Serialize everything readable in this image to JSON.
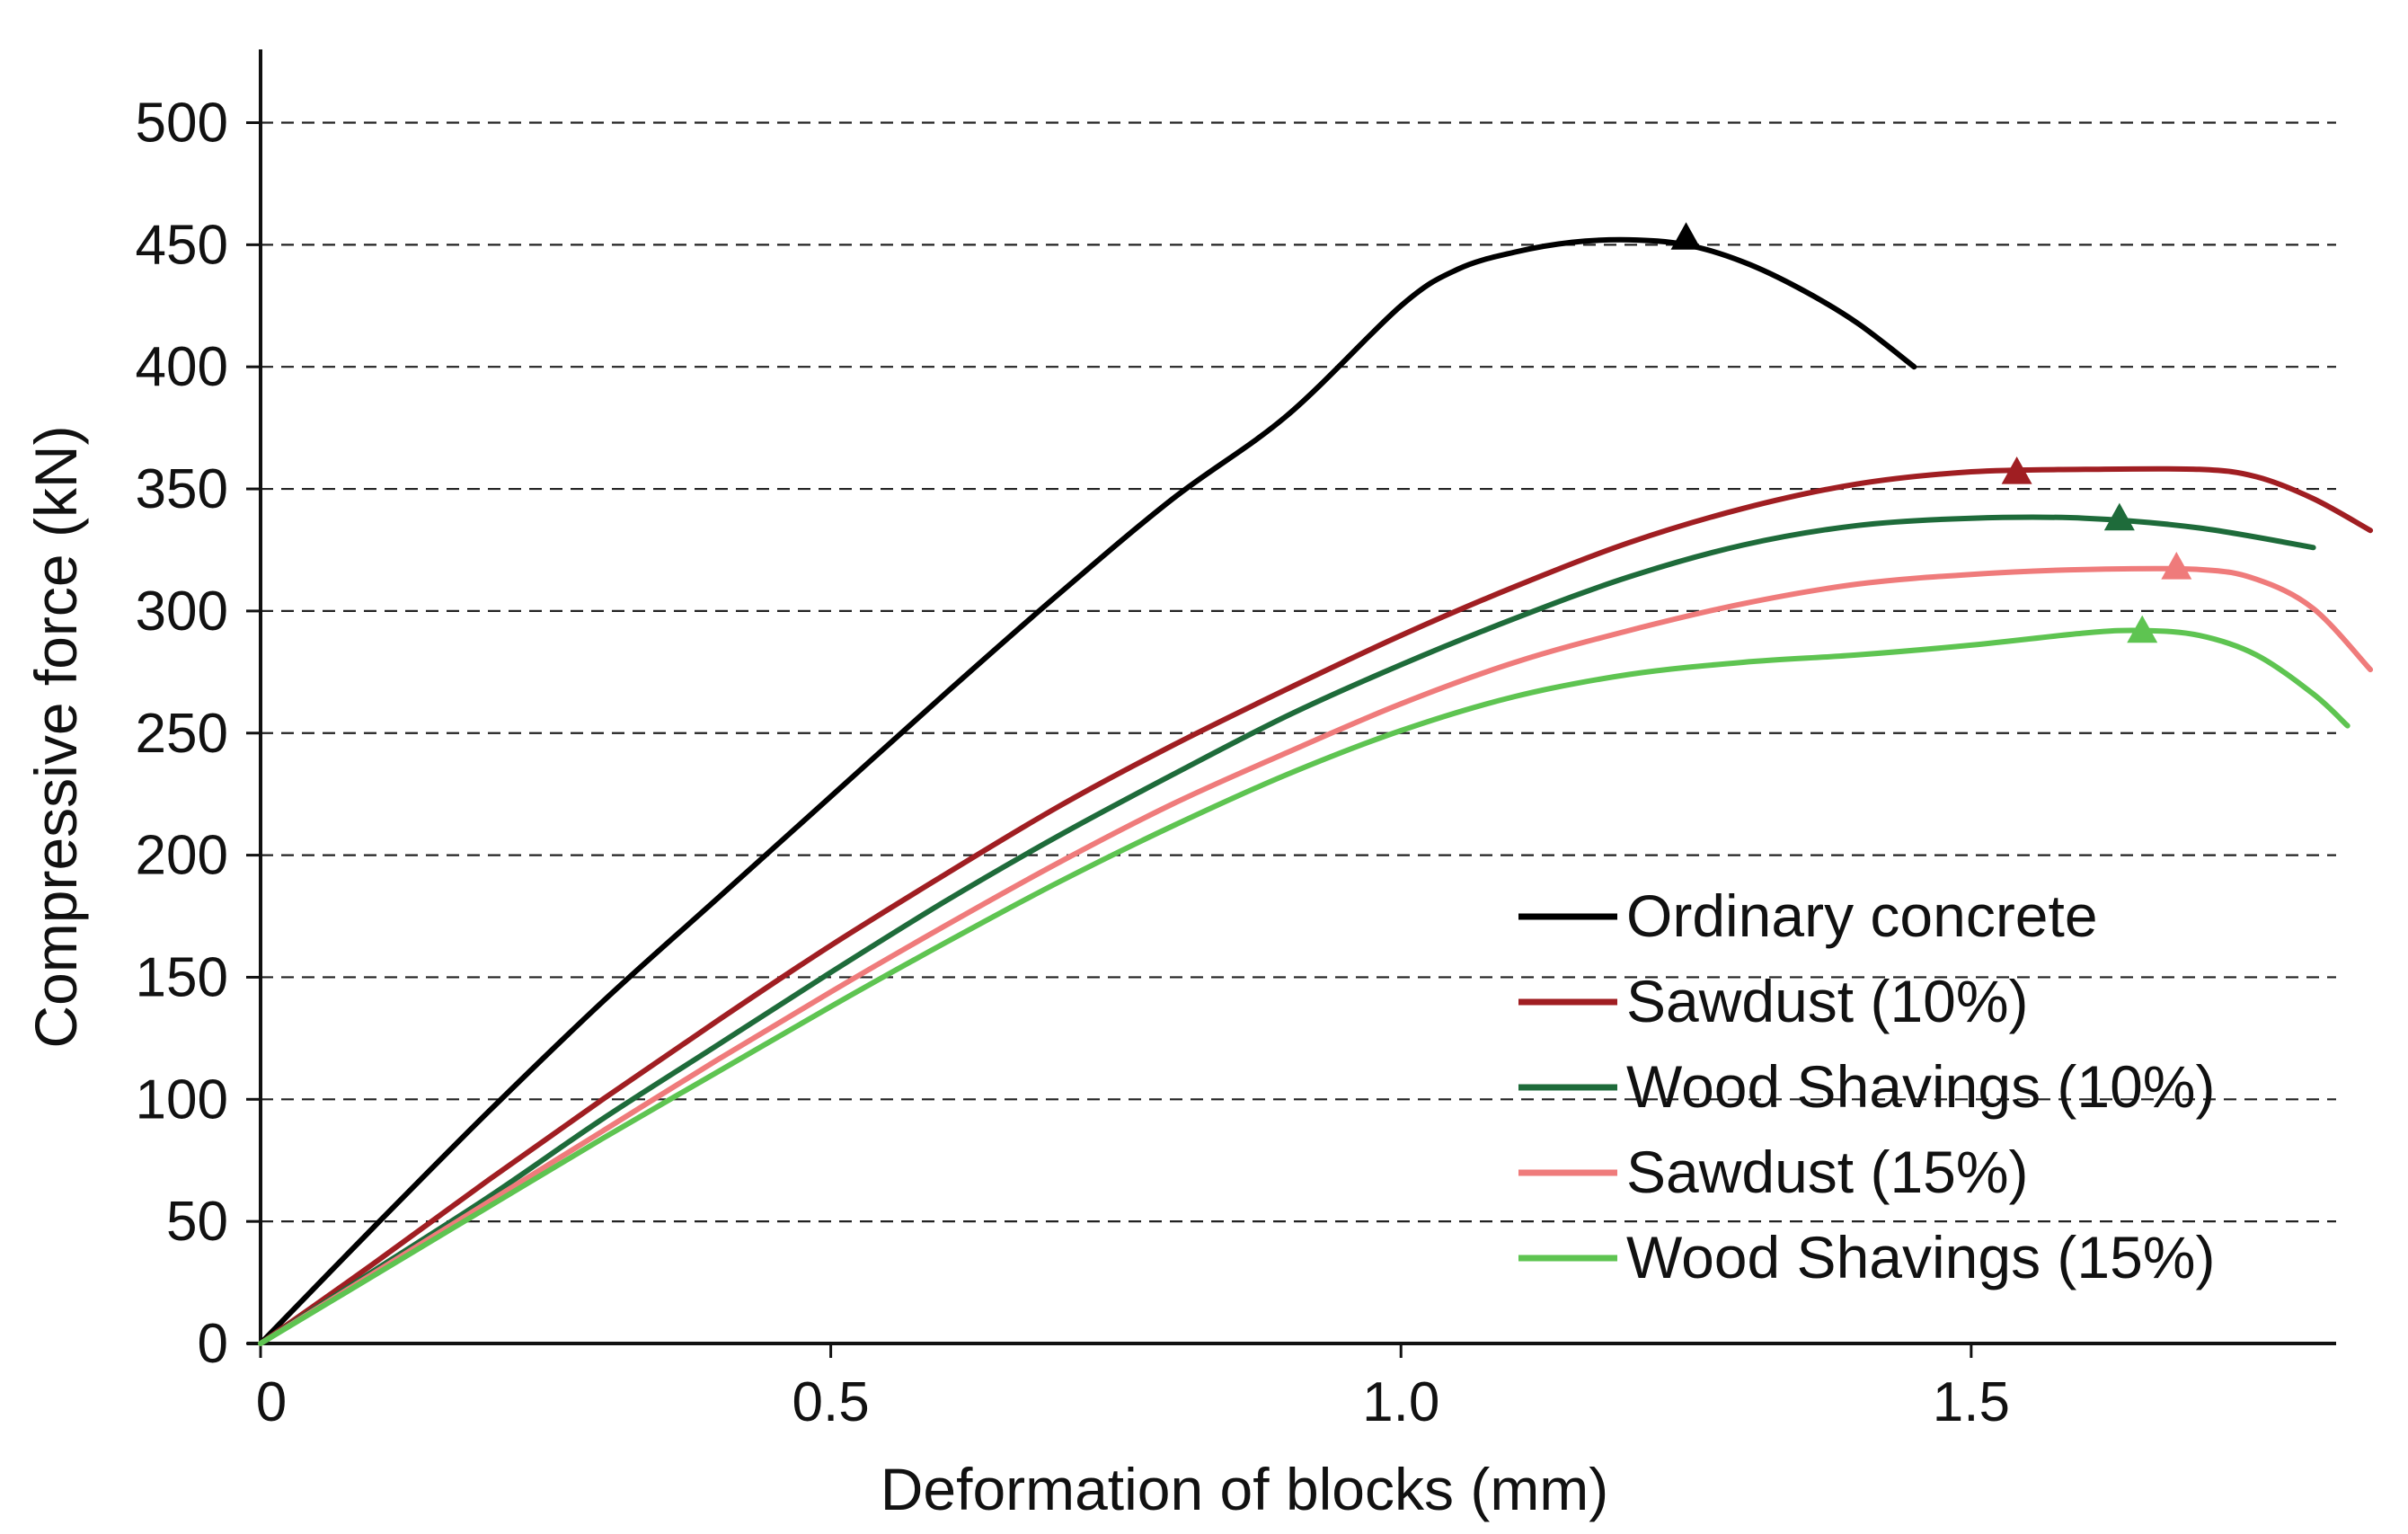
{
  "chart_data": {
    "type": "line",
    "title": "",
    "xlabel": "Deformation of blocks (mm)",
    "ylabel": "Compressive force (kN)",
    "xlim": [
      0,
      1.82
    ],
    "ylim": [
      0,
      530
    ],
    "x_ticks": [
      "0",
      "0.5",
      "1.0",
      "1.5"
    ],
    "x_tick_values": [
      0,
      0.5,
      1.0,
      1.5
    ],
    "y_ticks": [
      "0",
      "50",
      "100",
      "150",
      "200",
      "250",
      "300",
      "350",
      "400",
      "450",
      "500"
    ],
    "y_tick_values": [
      0,
      50,
      100,
      150,
      200,
      250,
      300,
      350,
      400,
      450,
      500
    ],
    "grid": "horizontal dashed",
    "legend_position": "lower-right",
    "series": [
      {
        "name": "Ordinary concrete",
        "color": "#000000",
        "x": [
          0,
          0.1,
          0.2,
          0.3,
          0.4,
          0.5,
          0.6,
          0.7,
          0.8,
          0.9,
          1.0,
          1.05,
          1.1,
          1.15,
          1.2,
          1.25,
          1.3,
          1.35,
          1.4,
          1.45
        ],
        "y": [
          0,
          48,
          95,
          140,
          182,
          224,
          266,
          307,
          346,
          380,
          425,
          440,
          447,
          451,
          452,
          450,
          443,
          432,
          418,
          400
        ],
        "marker": {
          "x": 1.25,
          "y": 453
        }
      },
      {
        "name": "Sawdust (10%)",
        "color": "#a01e22",
        "x": [
          0,
          0.1,
          0.2,
          0.3,
          0.4,
          0.5,
          0.6,
          0.7,
          0.8,
          0.9,
          1.0,
          1.1,
          1.2,
          1.3,
          1.4,
          1.5,
          1.6,
          1.7,
          1.75,
          1.8,
          1.85
        ],
        "y": [
          0,
          33,
          67,
          100,
          132,
          163,
          192,
          220,
          245,
          268,
          290,
          310,
          328,
          342,
          352,
          357,
          358,
          358,
          355,
          346,
          333
        ],
        "marker": {
          "x": 1.54,
          "y": 357
        }
      },
      {
        "name": "Wood Shavings (10%)",
        "color": "#1e6b3a",
        "x": [
          0,
          0.1,
          0.2,
          0.3,
          0.4,
          0.5,
          0.6,
          0.7,
          0.8,
          0.9,
          1.0,
          1.1,
          1.2,
          1.3,
          1.4,
          1.5,
          1.6,
          1.7,
          1.8
        ],
        "y": [
          0,
          30,
          60,
          92,
          122,
          152,
          181,
          208,
          233,
          257,
          278,
          297,
          314,
          327,
          335,
          338,
          338,
          334,
          326
        ],
        "marker": {
          "x": 1.63,
          "y": 338
        }
      },
      {
        "name": "Sawdust (15%)",
        "color": "#ef7b7b",
        "x": [
          0,
          0.1,
          0.2,
          0.3,
          0.4,
          0.5,
          0.6,
          0.7,
          0.8,
          0.9,
          1.0,
          1.1,
          1.2,
          1.3,
          1.4,
          1.5,
          1.6,
          1.7,
          1.75,
          1.8,
          1.85
        ],
        "y": [
          0,
          29,
          58,
          87,
          116,
          144,
          171,
          197,
          221,
          242,
          262,
          279,
          292,
          303,
          311,
          315,
          317,
          317,
          313,
          301,
          276
        ],
        "marker": {
          "x": 1.68,
          "y": 318
        }
      },
      {
        "name": "Wood Shavings (15%)",
        "color": "#5ec451",
        "x": [
          0,
          0.1,
          0.2,
          0.3,
          0.4,
          0.5,
          0.6,
          0.7,
          0.8,
          0.9,
          1.0,
          1.1,
          1.2,
          1.3,
          1.4,
          1.5,
          1.6,
          1.65,
          1.7,
          1.75,
          1.8,
          1.83
        ],
        "y": [
          0,
          28,
          56,
          84,
          111,
          138,
          164,
          189,
          212,
          233,
          251,
          265,
          274,
          279,
          282,
          286,
          291,
          292,
          290,
          282,
          266,
          253
        ],
        "marker": {
          "x": 1.65,
          "y": 292
        }
      }
    ]
  }
}
